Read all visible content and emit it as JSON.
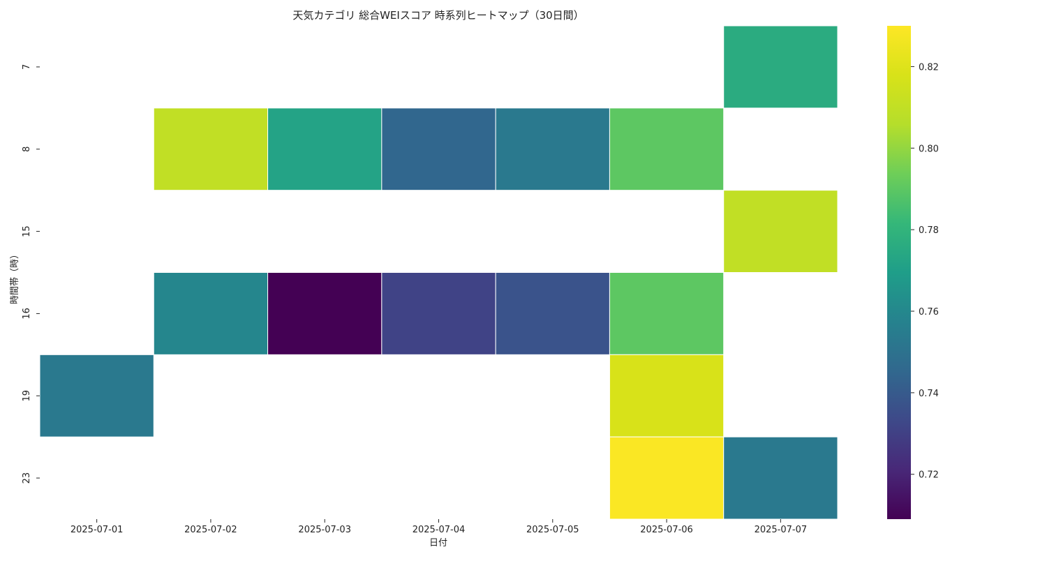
{
  "chart_data": {
    "type": "heatmap",
    "title": "天気カテゴリ 総合WEIスコア 時系列ヒートマップ（30日間）",
    "xlabel": "日付",
    "ylabel": "時間帯（時）",
    "x_categories": [
      "2025-07-01",
      "2025-07-02",
      "2025-07-03",
      "2025-07-04",
      "2025-07-05",
      "2025-07-06",
      "2025-07-07"
    ],
    "y_categories": [
      "7",
      "8",
      "15",
      "16",
      "19",
      "23"
    ],
    "values": [
      [
        null,
        null,
        null,
        null,
        null,
        null,
        0.776
      ],
      [
        null,
        0.81,
        0.772,
        0.745,
        0.753,
        0.79,
        null
      ],
      [
        null,
        null,
        null,
        null,
        null,
        null,
        0.81
      ],
      [
        null,
        0.759,
        0.709,
        0.731,
        0.737,
        0.79,
        null
      ],
      [
        0.753,
        null,
        null,
        null,
        null,
        0.818,
        null
      ],
      [
        null,
        null,
        null,
        null,
        null,
        0.829,
        0.753
      ]
    ],
    "colormap": "viridis",
    "colorbar": {
      "range": [
        0.709,
        0.83
      ],
      "ticks": [
        0.72,
        0.74,
        0.76,
        0.78,
        0.8,
        0.82
      ],
      "tick_labels": [
        "0.72",
        "0.74",
        "0.76",
        "0.78",
        "0.80",
        "0.82"
      ]
    },
    "grid": false
  }
}
